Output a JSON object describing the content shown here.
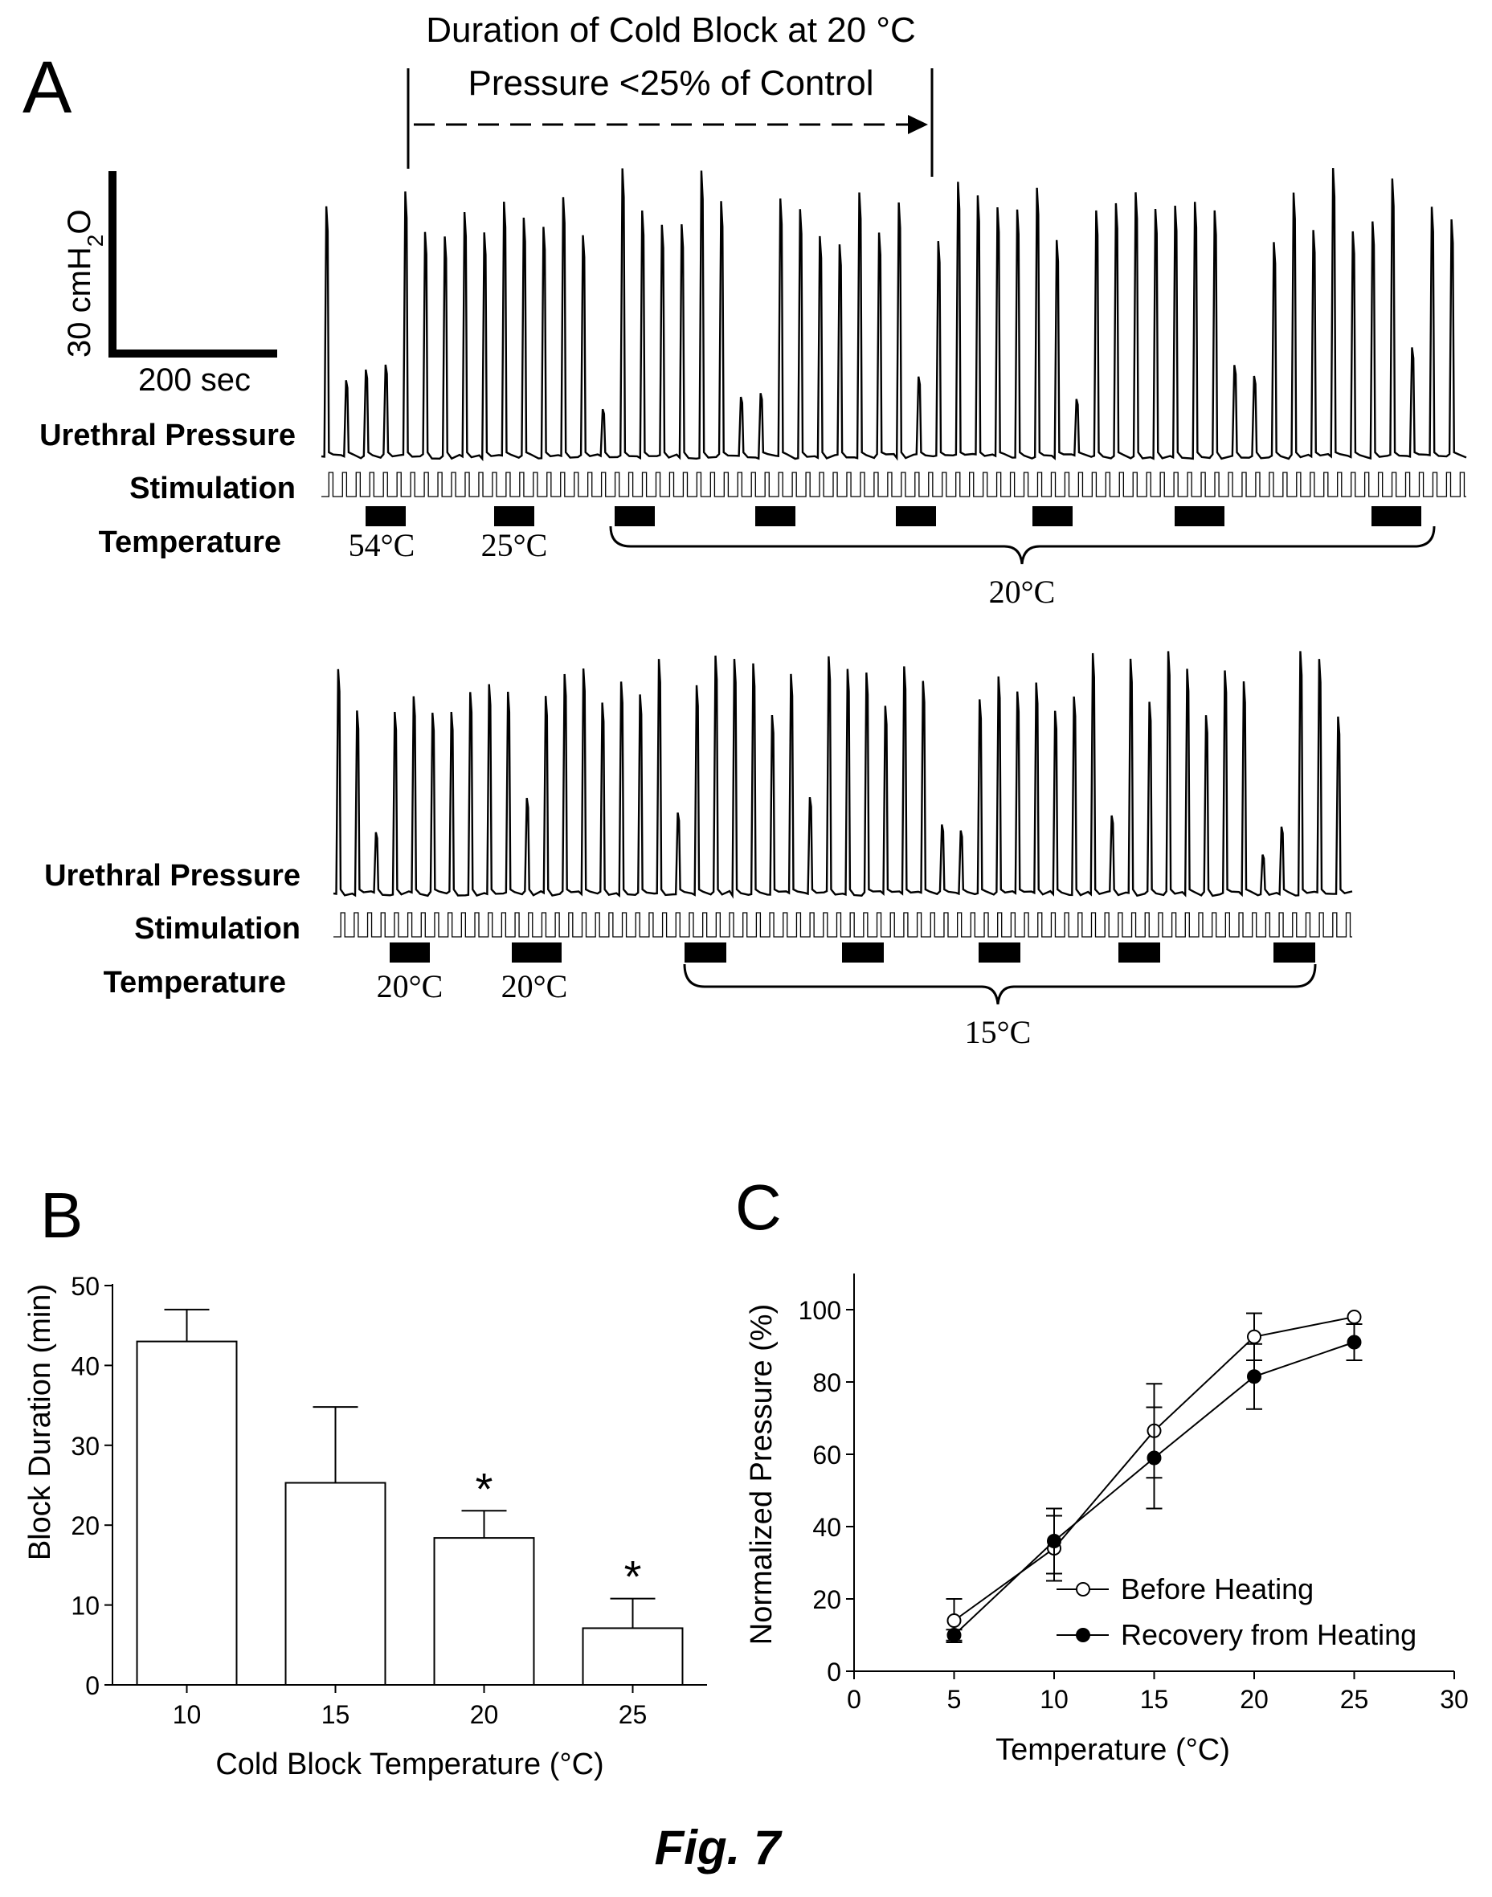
{
  "figure_caption": "Fig. 7",
  "panel_a": {
    "label": "A",
    "annotation_line1": "Duration of Cold Block at 20 °C",
    "annotation_line2": "Pressure <25% of Control",
    "scale_bar_y_label": "30 cmH2O",
    "scale_bar_y_main": "30 cmH",
    "scale_bar_y_sub": "2",
    "scale_bar_y_tail": "O",
    "scale_bar_x_label": "200 sec",
    "trace_labels": {
      "pressure": "Urethral Pressure",
      "stimulation": "Stimulation",
      "temperature": "Temperature"
    },
    "row1_temps": {
      "a": "54°C",
      "b": "25°C",
      "bracket": "20°C"
    },
    "row2_temps": {
      "a": "20°C",
      "b": "20°C",
      "bracket": "15°C"
    }
  },
  "chart_data": [
    {
      "panel": "B",
      "type": "bar",
      "categories": [
        "10",
        "15",
        "20",
        "25"
      ],
      "values": [
        43,
        25.3,
        18.4,
        7.1
      ],
      "errors": [
        4,
        9.5,
        3.4,
        3.7
      ],
      "significance": [
        "",
        "",
        "*",
        "*"
      ],
      "xlabel": "Cold Block Temperature (°C)",
      "ylabel": "Block Duration (min)",
      "ylim": [
        0,
        50
      ],
      "yticks": [
        0,
        10,
        20,
        30,
        40,
        50
      ]
    },
    {
      "panel": "C",
      "type": "line",
      "xlabel": "Temperature (°C)",
      "ylabel": "Normalized Pressure (%)",
      "xlim": [
        0,
        30
      ],
      "ylim": [
        0,
        110
      ],
      "xticks": [
        0,
        5,
        10,
        15,
        20,
        25,
        30
      ],
      "yticks": [
        0,
        20,
        40,
        60,
        80,
        100
      ],
      "legend_placement": "bottom-right",
      "series": [
        {
          "name": "Before Heating",
          "marker": "open-circle",
          "x": [
            5,
            10,
            15,
            20,
            25
          ],
          "y": [
            14,
            34,
            66.5,
            92.5,
            98
          ],
          "errors": [
            6,
            9,
            13,
            6.5,
            0
          ]
        },
        {
          "name": "Recovery  from Heating",
          "marker": "filled-circle",
          "x": [
            5,
            10,
            15,
            20,
            25
          ],
          "y": [
            10,
            36,
            59,
            81.5,
            91
          ],
          "errors": [
            1.5,
            9,
            14,
            9,
            5
          ]
        }
      ]
    }
  ]
}
